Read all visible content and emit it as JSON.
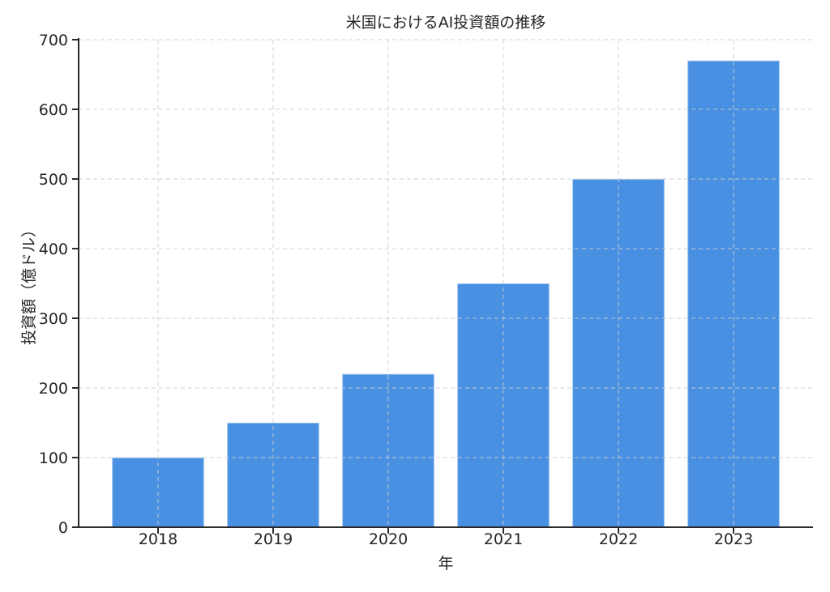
{
  "chart_data": {
    "type": "bar",
    "title": "米国におけるAI投資額の推移",
    "xlabel": "年",
    "ylabel": "投資額（億ドル）",
    "categories": [
      "2018",
      "2019",
      "2020",
      "2021",
      "2022",
      "2023"
    ],
    "values": [
      100,
      150,
      220,
      350,
      500,
      670
    ],
    "ylim": [
      0,
      700
    ],
    "yticks": [
      0,
      100,
      200,
      300,
      400,
      500,
      600,
      700
    ],
    "bar_color": "#4a90e2",
    "bar_edge_color": "rgba(255,255,255,0.4)",
    "grid": {
      "visible": true,
      "style": "dashed",
      "color": "#cccccc",
      "over_bars": true
    },
    "axis_color": "#2b2b2b",
    "text_color": "#262626",
    "background": "#ffffff",
    "legend": null
  }
}
